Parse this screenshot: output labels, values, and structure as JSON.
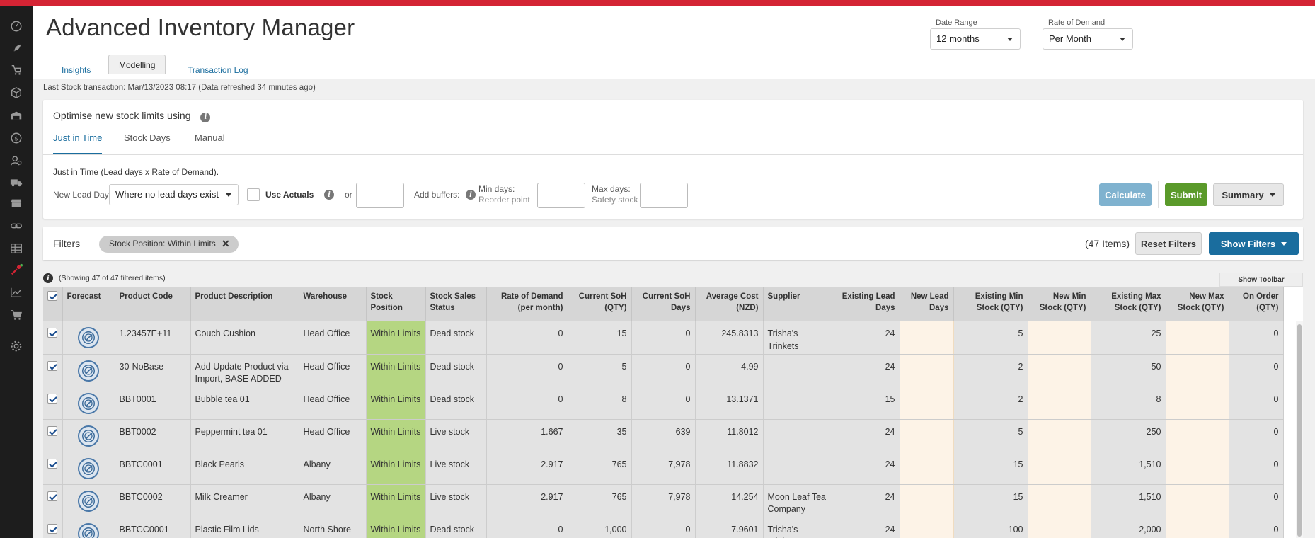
{
  "app": {
    "title": "Advanced Inventory Manager"
  },
  "header": {
    "date_range": {
      "label": "Date Range",
      "value": "12 months"
    },
    "rate_of_demand": {
      "label": "Rate of Demand",
      "value": "Per Month"
    }
  },
  "tabs": [
    {
      "label": "Insights"
    },
    {
      "label": "Modelling",
      "active": true
    },
    {
      "label": "Transaction Log"
    }
  ],
  "status_line": "Last Stock transaction: Mar/13/2023 08:17 (Data refreshed 34 minutes ago)",
  "optimise": {
    "title": "Optimise new stock limits using",
    "tabs": [
      {
        "label": "Just in Time",
        "active": true
      },
      {
        "label": "Stock Days"
      },
      {
        "label": "Manual"
      }
    ],
    "formula": "Just in Time (Lead days x Rate of Demand).",
    "new_lead_days_label": "New Lead Days:",
    "lead_days_select": "Where no lead days exist",
    "use_actuals_label": "Use Actuals",
    "or_label": "or",
    "add_buffers_label": "Add buffers:",
    "min_days_label": "Min days:",
    "min_days_sub": "Reorder point",
    "max_days_label": "Max days:",
    "max_days_sub": "Safety stock",
    "calculate_label": "Calculate",
    "submit_label": "Submit",
    "summary_label": "Summary"
  },
  "filters": {
    "label": "Filters",
    "chip": "Stock Position: Within Limits",
    "items_count": "(47 Items)",
    "reset_label": "Reset Filters",
    "show_label": "Show Filters"
  },
  "showing": "(Showing 47 of 47 filtered items)",
  "show_toolbar_label": "Show Toolbar",
  "colors": {
    "accent_red": "#d42434",
    "link_blue": "#1a6d9e",
    "submit_green": "#5a9a2a",
    "calculate_blue": "#7fb2cf",
    "within_limits_green": "#b5d682"
  },
  "table": {
    "headers": {
      "forecast": "Forecast",
      "product_code": "Product Code",
      "product_description": "Product Description",
      "warehouse": "Warehouse",
      "stock_position": "Stock Position",
      "stock_sales_status": "Stock Sales Status",
      "rate_of_demand": "Rate of Demand (per month)",
      "current_soh_qty": "Current SoH (QTY)",
      "current_soh_days": "Current SoH Days",
      "average_cost": "Average Cost (NZD)",
      "supplier": "Supplier",
      "existing_lead_days": "Existing Lead Days",
      "new_lead_days": "New Lead Days",
      "existing_min": "Existing Min Stock (QTY)",
      "new_min": "New Min Stock (QTY)",
      "existing_max": "Existing Max Stock (QTY)",
      "new_max": "New Max Stock (QTY)",
      "on_order": "On Order (QTY)"
    },
    "rows": [
      {
        "code": "1.23457E+11",
        "desc": "Couch Cushion",
        "warehouse": "Head Office",
        "position": "Within Limits",
        "status": "Dead stock",
        "rod": "0",
        "soh": "15",
        "soh_days": "0",
        "cost": "245.8313",
        "supplier": "Trisha's Trinkets",
        "lead": "24",
        "new_lead": "",
        "min": "5",
        "new_min": "",
        "max": "25",
        "new_max": "",
        "on_order": "0"
      },
      {
        "code": "30-NoBase",
        "desc": "Add Update Product via Import, BASE ADDED",
        "warehouse": "Head Office",
        "position": "Within Limits",
        "status": "Dead stock",
        "rod": "0",
        "soh": "5",
        "soh_days": "0",
        "cost": "4.99",
        "supplier": "",
        "lead": "24",
        "new_lead": "",
        "min": "2",
        "new_min": "",
        "max": "50",
        "new_max": "",
        "on_order": "0"
      },
      {
        "code": "BBT0001",
        "desc": "Bubble tea 01",
        "warehouse": "Head Office",
        "position": "Within Limits",
        "status": "Dead stock",
        "rod": "0",
        "soh": "8",
        "soh_days": "0",
        "cost": "13.1371",
        "supplier": "",
        "lead": "15",
        "new_lead": "",
        "min": "2",
        "new_min": "",
        "max": "8",
        "new_max": "",
        "on_order": "0"
      },
      {
        "code": "BBT0002",
        "desc": "Peppermint tea 01",
        "warehouse": "Head Office",
        "position": "Within Limits",
        "status": "Live stock",
        "rod": "1.667",
        "soh": "35",
        "soh_days": "639",
        "cost": "11.8012",
        "supplier": "",
        "lead": "24",
        "new_lead": "",
        "min": "5",
        "new_min": "",
        "max": "250",
        "new_max": "",
        "on_order": "0"
      },
      {
        "code": "BBTC0001",
        "desc": "Black Pearls",
        "warehouse": "Albany",
        "position": "Within Limits",
        "status": "Live stock",
        "rod": "2.917",
        "soh": "765",
        "soh_days": "7,978",
        "cost": "11.8832",
        "supplier": "",
        "lead": "24",
        "new_lead": "",
        "min": "15",
        "new_min": "",
        "max": "1,510",
        "new_max": "",
        "on_order": "0"
      },
      {
        "code": "BBTC0002",
        "desc": "Milk Creamer",
        "warehouse": "Albany",
        "position": "Within Limits",
        "status": "Live stock",
        "rod": "2.917",
        "soh": "765",
        "soh_days": "7,978",
        "cost": "14.254",
        "supplier": "Moon Leaf Tea Company",
        "lead": "24",
        "new_lead": "",
        "min": "15",
        "new_min": "",
        "max": "1,510",
        "new_max": "",
        "on_order": "0"
      },
      {
        "code": "BBTCC0001",
        "desc": "Plastic Film Lids",
        "warehouse": "North Shore",
        "position": "Within Limits",
        "status": "Dead stock",
        "rod": "0",
        "soh": "1,000",
        "soh_days": "0",
        "cost": "7.9601",
        "supplier": "Trisha's Trinkets",
        "lead": "24",
        "new_lead": "",
        "min": "100",
        "new_min": "",
        "max": "2,000",
        "new_max": "",
        "on_order": "0"
      }
    ]
  }
}
